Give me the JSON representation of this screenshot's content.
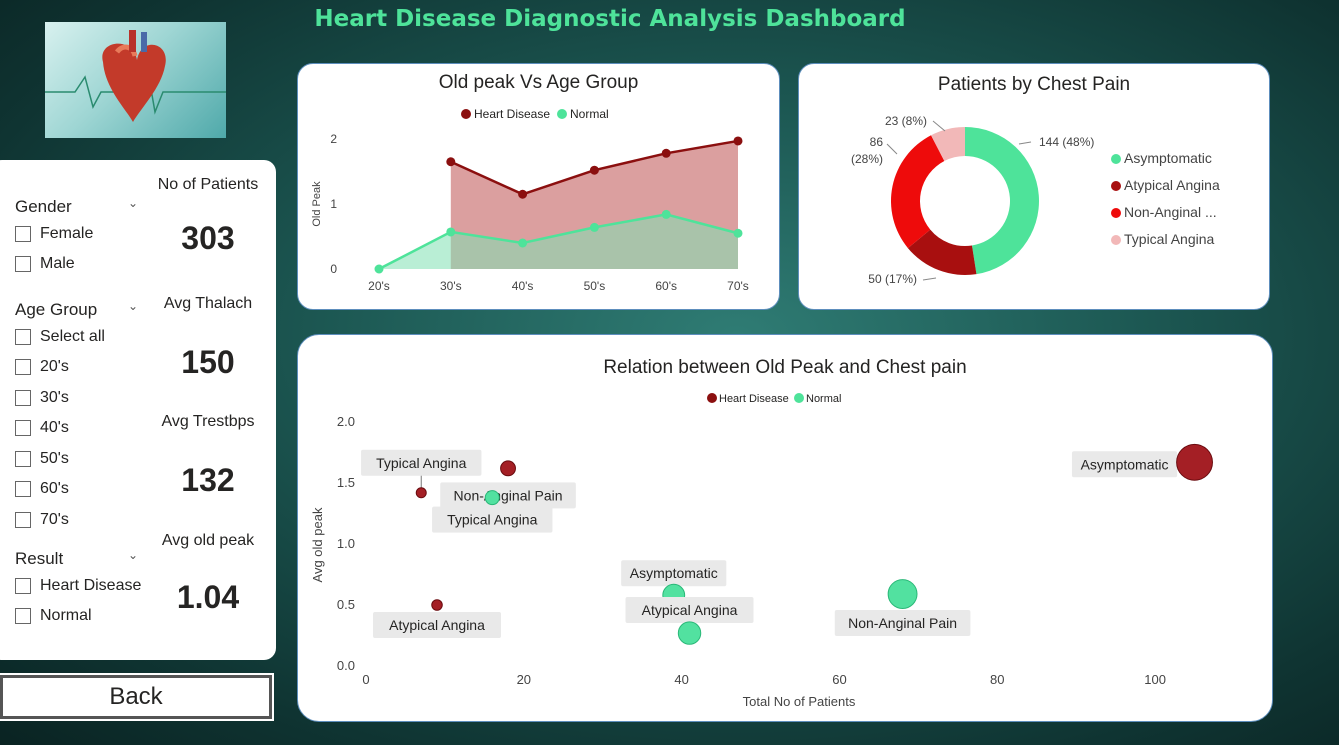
{
  "dashboard": {
    "title": "Heart Disease Diagnostic Analysis Dashboard"
  },
  "colors": {
    "heart_disease": "#8b0f0f",
    "normal": "#4ee39a",
    "accent_title": "#4ee39a"
  },
  "filters": {
    "gender": {
      "title": "Gender",
      "options": [
        "Female",
        "Male"
      ]
    },
    "age_group": {
      "title": "Age Group",
      "options": [
        "Select all",
        "20's",
        "30's",
        "40's",
        "50's",
        "60's",
        "70's"
      ]
    },
    "result": {
      "title": "Result",
      "options": [
        "Heart Disease",
        "Normal"
      ]
    }
  },
  "kpis": [
    {
      "label": "No of Patients",
      "value": "303"
    },
    {
      "label": "Avg Thalach",
      "value": "150"
    },
    {
      "label": "Avg Trestbps",
      "value": "132"
    },
    {
      "label": "Avg old peak",
      "value": "1.04"
    }
  ],
  "back_button": {
    "label": "Back"
  },
  "chart_data": [
    {
      "type": "area",
      "title": "Old peak Vs Age Group",
      "ylabel": "Old Peak",
      "xlabel": "",
      "categories": [
        "20's",
        "30's",
        "40's",
        "50's",
        "60's",
        "70's"
      ],
      "ylim": [
        0,
        2
      ],
      "yticks": [
        "0",
        "1",
        "2"
      ],
      "legend_position": "top",
      "series": [
        {
          "name": "Heart Disease",
          "values": [
            null,
            1.65,
            1.15,
            1.52,
            1.78,
            1.97
          ]
        },
        {
          "name": "Normal",
          "values": [
            0.0,
            0.57,
            0.4,
            0.64,
            0.84,
            0.55
          ]
        }
      ]
    },
    {
      "type": "pie",
      "title": "Patients by Chest Pain",
      "legend_position": "right",
      "slices": [
        {
          "name": "Asymptomatic",
          "value": 144,
          "label": "144 (48%)"
        },
        {
          "name": "Atypical Angina",
          "value": 50,
          "label": "50 (17%)"
        },
        {
          "name": "Non-Anginal ...",
          "value": 86,
          "label": "86 (28%)"
        },
        {
          "name": "Typical Angina",
          "value": 23,
          "label": "23 (8%)"
        }
      ]
    },
    {
      "type": "scatter",
      "title": "Relation between Old Peak and Chest pain",
      "xlabel": "Total No of Patients",
      "ylabel": "Avg old peak",
      "xlim": [
        0,
        110
      ],
      "ylim": [
        0,
        2.0
      ],
      "xticks": [
        "0",
        "20",
        "40",
        "60",
        "80",
        "100"
      ],
      "yticks": [
        "0.0",
        "0.5",
        "1.0",
        "1.5",
        "2.0"
      ],
      "legend_position": "top",
      "series_names": [
        "Heart Disease",
        "Normal"
      ],
      "points": [
        {
          "series": "Heart Disease",
          "label": "Typical Angina",
          "x": 7,
          "y": 1.42
        },
        {
          "series": "Heart Disease",
          "label": "Non-Anginal Pain",
          "x": 18,
          "y": 1.62
        },
        {
          "series": "Heart Disease",
          "label": "Atypical Angina",
          "x": 9,
          "y": 0.5
        },
        {
          "series": "Heart Disease",
          "label": "Asymptomatic",
          "x": 105,
          "y": 1.67
        },
        {
          "series": "Normal",
          "label": "Typical Angina",
          "x": 16,
          "y": 1.38
        },
        {
          "series": "Normal",
          "label": "Asymptomatic",
          "x": 39,
          "y": 0.58
        },
        {
          "series": "Normal",
          "label": "Atypical Angina",
          "x": 41,
          "y": 0.27
        },
        {
          "series": "Normal",
          "label": "Non-Anginal Pain",
          "x": 68,
          "y": 0.59
        }
      ]
    }
  ]
}
